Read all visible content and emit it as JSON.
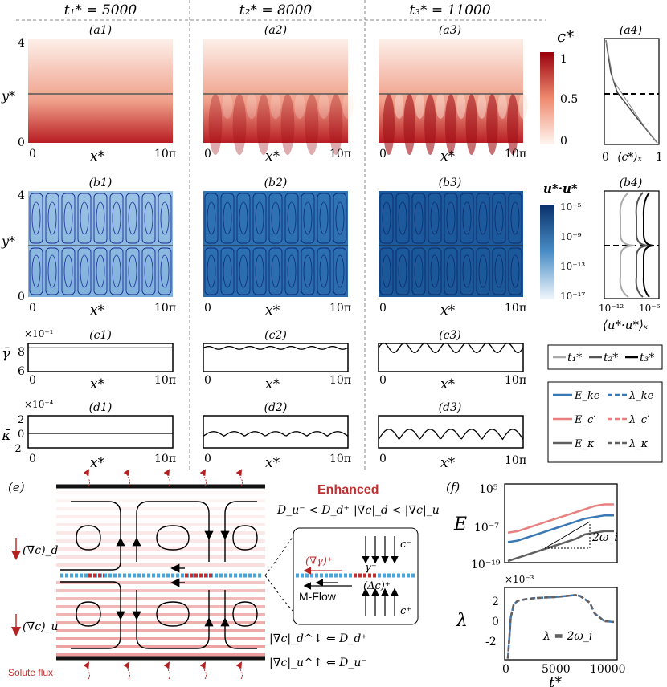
{
  "columns": [
    "t₁* = 5000",
    "t₂* = 8000",
    "t₃* = 11000"
  ],
  "panel_labels": {
    "a": [
      "(a1)",
      "(a2)",
      "(a3)",
      "(a4)"
    ],
    "b": [
      "(b1)",
      "(b2)",
      "(b3)",
      "(b4)"
    ],
    "c": [
      "(c1)",
      "(c2)",
      "(c3)"
    ],
    "d": [
      "(d1)",
      "(d2)",
      "(d3)"
    ],
    "e": "(e)",
    "f": "(f)"
  },
  "axes": {
    "x_label": "x*",
    "y_label": "y*",
    "x_ticks": [
      "0",
      "10π"
    ],
    "y_ticks": [
      "0",
      "4"
    ]
  },
  "colorbar_c": {
    "label": "c*",
    "ticks": [
      "1",
      "0.5",
      "0"
    ],
    "color_low": "#fbe9e3",
    "color_high": "#a01018"
  },
  "colorbar_u": {
    "label": "u*·u*",
    "ticks": [
      "10⁻⁵",
      "10⁻⁹",
      "10⁻¹³",
      "10⁻¹⁷"
    ],
    "color_low": "#e6f0f8",
    "color_high": "#08306b"
  },
  "a4": {
    "xlabel": "⟨c*⟩ₓ",
    "x_ticks": [
      "0",
      "1"
    ]
  },
  "b4": {
    "xlabel": "⟨u*·u*⟩ₓ",
    "x_ticks": [
      "10⁻¹²",
      "10⁻⁶"
    ]
  },
  "c_row": {
    "ylabel": "γ̄",
    "scale": "×10⁻¹",
    "y_ticks": [
      "8",
      "6"
    ],
    "levels": [
      8.3,
      8.3,
      8.3
    ],
    "amplitude": [
      0.0,
      0.15,
      0.5
    ]
  },
  "d_row": {
    "ylabel": "κ̄",
    "scale": "×10⁻⁴",
    "y_ticks": [
      "2",
      "0",
      "-2"
    ]
  },
  "legend_t": [
    "t₁*",
    "t₂*",
    "t₃*"
  ],
  "legend_E": [
    {
      "label": "E_ke",
      "color": "#3a78b4"
    },
    {
      "label": "E_c′",
      "color": "#e88080"
    },
    {
      "label": "E_κ",
      "color": "#606060"
    }
  ],
  "legend_lambda": [
    {
      "label": "λ_ke",
      "color": "#3a78b4"
    },
    {
      "label": "λ_c′",
      "color": "#e88080"
    },
    {
      "label": "λ_κ",
      "color": "#606060"
    }
  ],
  "schematic": {
    "title": "Enhanced",
    "relation1": "D_u⁻ < D_d⁺",
    "relation2": "|∇c|_d < |∇c|_u",
    "grad_d": "(∇c)_d",
    "grad_u": "(∇c)_u",
    "grad_gamma": "(∇γ)⁺",
    "gamma_minus": "γ⁻",
    "delta_c": "(Δc)⁺",
    "c_minus": "c⁻",
    "c_plus": "c⁺",
    "mflow": "M-Flow",
    "bottom1": "|∇c|_d^↓ ⇐ D_d⁺",
    "bottom2": "|∇c|_u^↑ ⇐ D_u⁻",
    "solute_flux": "Solute flux"
  },
  "f_panel": {
    "E_label": "E",
    "E_ticks": [
      "10⁵",
      "10⁻⁷",
      "10⁻¹⁹"
    ],
    "slope_label": "2ω_i",
    "lambda_label": "λ",
    "lambda_scale": "×10⁻³",
    "lambda_ticks": [
      "2",
      "0",
      "-2"
    ],
    "lambda_note": "λ = 2ω_i",
    "t_label": "t*",
    "t_ticks": [
      "0",
      "5000",
      "10000"
    ]
  },
  "chart_data": [
    {
      "type": "line",
      "title": "",
      "xlabel": "t*",
      "ylabel": "E",
      "yscale": "log",
      "x": [
        0,
        1000,
        2000,
        3000,
        4000,
        5000,
        6000,
        7000,
        8000,
        9000,
        10000,
        11000
      ],
      "series": [
        {
          "name": "E_c′",
          "values": [
            1e-10,
            3e-10,
            3e-09,
            3e-08,
            3e-07,
            3e-06,
            3e-05,
            0.0003,
            0.003,
            0.03,
            0.1,
            0.1
          ]
        },
        {
          "name": "E_ke",
          "values": [
            1e-13,
            3e-13,
            3e-12,
            3e-11,
            3e-10,
            3e-09,
            3e-08,
            3e-07,
            3e-06,
            1e-05,
            3e-05,
            3e-05
          ]
        },
        {
          "name": "E_κ",
          "values": [
            1e-19,
            1e-18,
            1e-17,
            1e-16,
            1e-15,
            1e-14,
            1e-13,
            1e-12,
            3e-11,
            1e-10,
            3e-10,
            3e-10
          ]
        }
      ],
      "ylim": [
        1e-19,
        100000.0
      ]
    },
    {
      "type": "line",
      "title": "",
      "xlabel": "t*",
      "ylabel": "λ",
      "x": [
        0,
        300,
        600,
        1000,
        2000,
        3000,
        4000,
        5000,
        6000,
        7000,
        7500,
        8500,
        9000,
        10000,
        11000
      ],
      "series": [
        {
          "name": "λ_ke",
          "values": [
            -3.8,
            0.5,
            1.8,
            2.2,
            2.4,
            2.5,
            2.55,
            2.6,
            2.7,
            2.8,
            2.7,
            2.0,
            0.9,
            0.1,
            0.0
          ]
        },
        {
          "name": "λ_c′",
          "values": [
            -3.8,
            0.5,
            1.8,
            2.2,
            2.4,
            2.5,
            2.55,
            2.6,
            2.7,
            2.8,
            2.7,
            2.0,
            0.9,
            0.1,
            0.0
          ]
        },
        {
          "name": "λ_κ",
          "values": [
            -3.8,
            0.5,
            1.8,
            2.2,
            2.4,
            2.5,
            2.55,
            2.6,
            2.7,
            2.8,
            2.7,
            2.0,
            0.9,
            0.1,
            0.0
          ]
        }
      ],
      "ylim": [
        -4,
        4
      ],
      "xlim": [
        0,
        11000
      ]
    }
  ]
}
